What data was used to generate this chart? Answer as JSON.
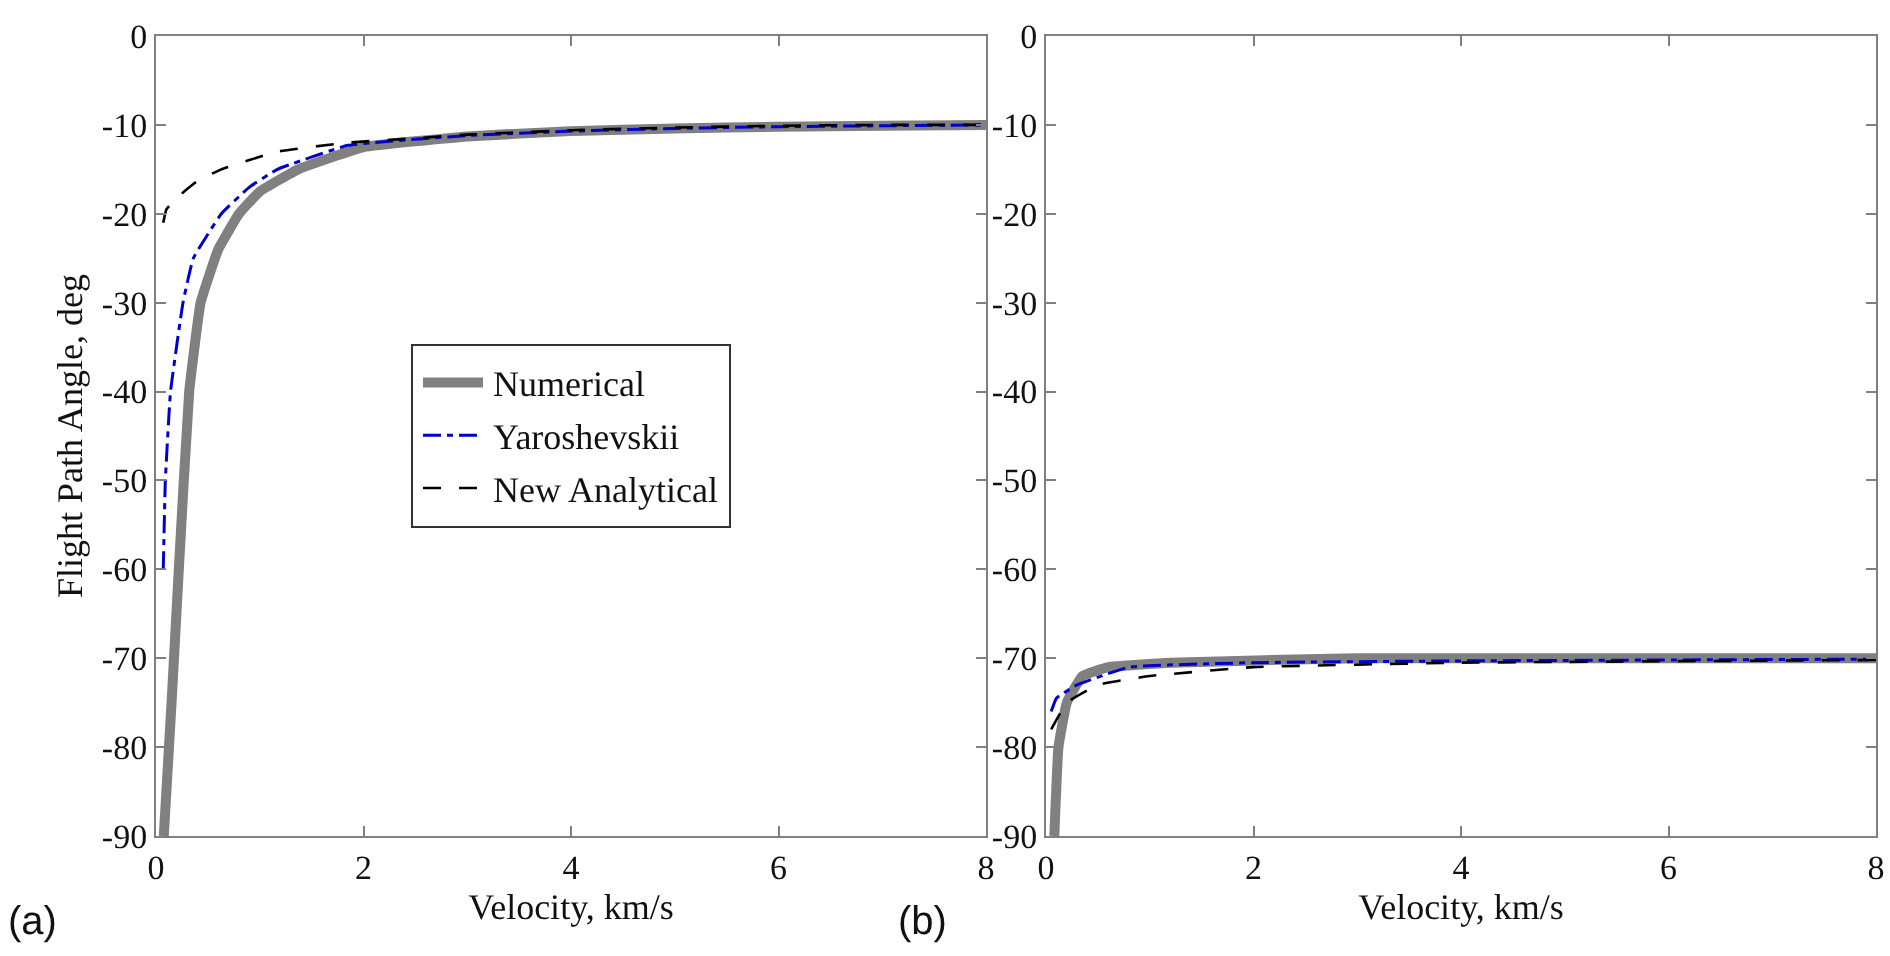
{
  "chart_data": [
    {
      "type": "line",
      "xlabel": "Velocity, km/s",
      "ylabel": "Flight Path Angle, deg",
      "xlim": [
        0,
        8
      ],
      "xticks": [
        0,
        2,
        4,
        6,
        8
      ],
      "ylim": [
        -90,
        0
      ],
      "yticks": [
        -90,
        -80,
        -70,
        -60,
        -50,
        -40,
        -30,
        -20,
        -10,
        0
      ],
      "legend": "center",
      "annotations": [
        "(a)"
      ],
      "series": [
        {
          "name": "Numerical",
          "color": "#808080",
          "line_style": "solid",
          "x": [
            0.075,
            0.15,
            0.22,
            0.32,
            0.43,
            0.6,
            0.8,
            1.0,
            1.37,
            2,
            3,
            4,
            5,
            6,
            7,
            8
          ],
          "values": [
            -90,
            -75,
            -60,
            -40,
            -30,
            -24,
            -20,
            -17.5,
            -15,
            -12.5,
            -11.3,
            -10.7,
            -10.4,
            -10.2,
            -10.1,
            -10
          ]
        },
        {
          "name": "Yaroshevskii",
          "color": "#0000cc",
          "line_style": "dashdot",
          "x": [
            0.07,
            0.09,
            0.14,
            0.26,
            0.36,
            0.63,
            0.9,
            1.17,
            1.85,
            3,
            4,
            5,
            6,
            7,
            8
          ],
          "values": [
            -60,
            -50,
            -40,
            -30,
            -25,
            -20,
            -17,
            -15,
            -12.3,
            -11.2,
            -10.7,
            -10.4,
            -10.2,
            -10.1,
            -10
          ]
        },
        {
          "name": "New Analytical",
          "color": "#000000",
          "line_style": "dashed",
          "x": [
            0.07,
            0.1,
            0.22,
            0.4,
            0.63,
            1.17,
            1.85,
            2.5,
            3,
            4,
            5,
            6,
            7,
            8
          ],
          "values": [
            -21,
            -19.5,
            -18,
            -16.3,
            -15,
            -13,
            -12,
            -11.5,
            -11.1,
            -10.6,
            -10.3,
            -10.1,
            -10,
            -10
          ]
        }
      ]
    },
    {
      "type": "line",
      "xlabel": "Velocity, km/s",
      "xlim": [
        0,
        8
      ],
      "xticks": [
        0,
        2,
        4,
        6,
        8
      ],
      "ylim": [
        -90,
        0
      ],
      "yticks": [
        -90,
        -80,
        -70,
        -60,
        -50,
        -40,
        -30,
        -20,
        -10,
        0
      ],
      "legend": false,
      "annotations": [
        "(b)"
      ],
      "series": [
        {
          "color": "#808080",
          "line_style": "solid",
          "x": [
            0.08,
            0.12,
            0.2,
            0.35,
            0.6,
            1.2,
            3,
            8
          ],
          "values": [
            -90,
            -80,
            -75,
            -72,
            -71,
            -70.5,
            -70,
            -70
          ]
        },
        {
          "color": "#0000cc",
          "line_style": "dashdot",
          "x": [
            0.05,
            0.1,
            0.3,
            0.8,
            2,
            4,
            8
          ],
          "values": [
            -76,
            -74.5,
            -73,
            -71,
            -70.5,
            -70.3,
            -70.1
          ]
        },
        {
          "color": "#000000",
          "line_style": "dashed",
          "x": [
            0.05,
            0.2,
            0.5,
            1,
            2,
            4,
            8
          ],
          "values": [
            -78,
            -75,
            -73,
            -72,
            -71,
            -70.5,
            -70.2
          ]
        }
      ]
    }
  ]
}
